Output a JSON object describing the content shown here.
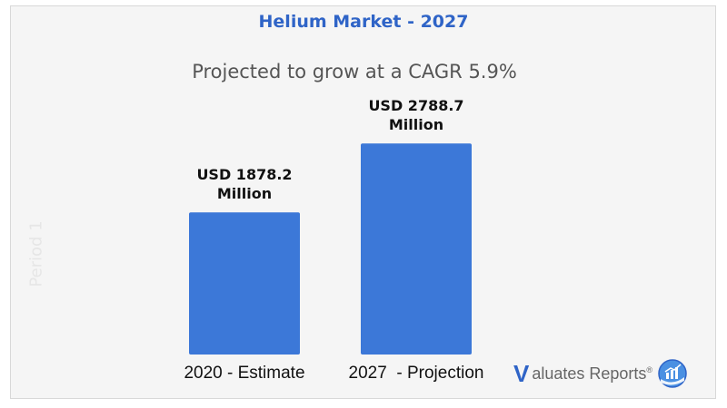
{
  "chart_data": {
    "type": "bar",
    "title": "Helium Market - 2027",
    "subtitle": "Projected to grow at a CAGR 5.9%",
    "categories": [
      "2020 - Estimate",
      "2027  - Projection"
    ],
    "values": [
      1878.2,
      2788.7
    ],
    "data_labels": [
      [
        "USD 1878.2",
        "Million"
      ],
      [
        "USD 2788.7",
        "Million"
      ]
    ],
    "ylim": [
      0,
      3750
    ],
    "grid": false,
    "bar_color": "#3c78d8"
  },
  "watermark": "Period 1",
  "logo": {
    "mark": "V",
    "text": "aluates Reports",
    "reg": "®",
    "icon": "chart-globe-icon"
  }
}
